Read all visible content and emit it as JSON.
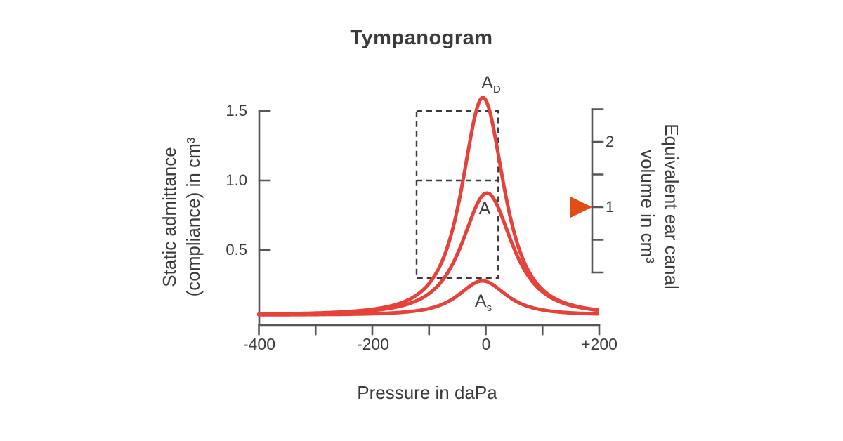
{
  "title": "Tympanogram",
  "colors": {
    "curve_red": "#e6423a",
    "marker_orange": "#e24d15",
    "axis_gray": "#57575a",
    "dash_gray": "#3b3b3b",
    "text_gray": "#3b3b3b"
  },
  "chart_data": {
    "type": "line",
    "title": "Tympanogram",
    "xlabel": "Pressure in daPa",
    "grid": false,
    "left_axis": {
      "title_lines": [
        "Static admittance",
        "(compliance) in cm³"
      ],
      "range": [
        0,
        1.5
      ],
      "ticks": [
        {
          "value": 0.5,
          "label": "0.5"
        },
        {
          "value": 1.0,
          "label": "1.0"
        },
        {
          "value": 1.5,
          "label": "1.5"
        }
      ]
    },
    "right_axis": {
      "title_lines": [
        "Equivalent ear canal",
        "volume in cm³"
      ],
      "range": [
        0,
        2.5
      ],
      "ticks": [
        {
          "value": 0,
          "label": ""
        },
        {
          "value": 0.5,
          "label": ""
        },
        {
          "value": 1,
          "label": "1"
        },
        {
          "value": 1.5,
          "label": ""
        },
        {
          "value": 2,
          "label": "2"
        },
        {
          "value": 2.5,
          "label": ""
        }
      ]
    },
    "x_axis": {
      "range": [
        -400,
        200
      ],
      "ticks": [
        {
          "value": -400,
          "label": "-400"
        },
        {
          "value": -300,
          "label": ""
        },
        {
          "value": -200,
          "label": "-200"
        },
        {
          "value": -100,
          "label": ""
        },
        {
          "value": 0,
          "label": "0"
        },
        {
          "value": 100,
          "label": ""
        },
        {
          "value": 200,
          "label": "+200"
        }
      ]
    },
    "series": [
      {
        "label_base": "A",
        "label_sub": "D",
        "peak_pressure_daPa": -5,
        "peak_admittance_cm3": 1.6,
        "baseline_admittance_cm3": 0.035,
        "curve": {
          "center": -5,
          "amplitude": 1.56,
          "width_daPa": 55,
          "shape_power": 1.4
        }
      },
      {
        "label_base": "A",
        "label_sub": "",
        "peak_pressure_daPa": 0,
        "peak_admittance_cm3": 0.91,
        "baseline_admittance_cm3": 0.035,
        "curve": {
          "center": 2,
          "amplitude": 0.875,
          "width_daPa": 65,
          "shape_power": 1.4
        }
      },
      {
        "label_base": "A",
        "label_sub": "s",
        "peak_pressure_daPa": -6,
        "peak_admittance_cm3": 0.28,
        "baseline_admittance_cm3": 0.035,
        "curve": {
          "center": -6,
          "amplitude": 0.245,
          "width_daPa": 62,
          "shape_power": 1.4
        }
      }
    ],
    "normal_range_box": {
      "pressure_daPa": [
        -122,
        22
      ],
      "admittance_cm3": [
        0.3,
        1.5
      ],
      "divider_admittance_cm3": 1.0
    },
    "marker": {
      "axis": "right",
      "value": 1,
      "shape": "triangle-right"
    }
  }
}
